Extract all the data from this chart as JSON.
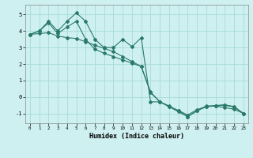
{
  "xlabel": "Humidex (Indice chaleur)",
  "bg_color": "#cff0f0",
  "grid_color": "#aadddd",
  "line_color": "#2a7a6a",
  "xlim": [
    -0.5,
    23.5
  ],
  "ylim": [
    -1.6,
    5.6
  ],
  "yticks": [
    -1,
    0,
    1,
    2,
    3,
    4,
    5
  ],
  "xticks": [
    0,
    1,
    2,
    3,
    4,
    5,
    6,
    7,
    8,
    9,
    10,
    11,
    12,
    13,
    14,
    15,
    16,
    17,
    18,
    19,
    20,
    21,
    22,
    23
  ],
  "s1_x": [
    0,
    1,
    2,
    3,
    4,
    5,
    6,
    7,
    8,
    9,
    10,
    11,
    12,
    13,
    14,
    15,
    16,
    17,
    18,
    19,
    20,
    21,
    22,
    23
  ],
  "s1_y": [
    3.8,
    4.0,
    4.6,
    4.0,
    4.6,
    5.1,
    4.6,
    3.5,
    3.0,
    3.0,
    3.5,
    3.05,
    3.6,
    -0.3,
    -0.3,
    -0.55,
    -0.85,
    -1.2,
    -0.85,
    -0.55,
    -0.55,
    -0.65,
    -0.75,
    -1.0
  ],
  "s2_x": [
    0,
    1,
    2,
    3,
    4,
    5,
    6,
    7,
    8,
    9,
    10,
    11,
    12,
    13,
    14,
    15,
    16,
    17,
    18,
    19,
    20,
    21,
    22,
    23
  ],
  "s2_y": [
    3.8,
    4.0,
    4.5,
    3.85,
    4.25,
    4.6,
    3.5,
    2.9,
    2.65,
    2.45,
    2.25,
    2.05,
    1.85,
    0.3,
    -0.3,
    -0.6,
    -0.9,
    -1.2,
    -0.85,
    -0.6,
    -0.55,
    -0.5,
    -0.62,
    -1.0
  ],
  "s3_x": [
    0,
    1,
    2,
    3,
    4,
    5,
    6,
    7,
    8,
    9,
    10,
    11,
    12,
    13,
    14,
    15,
    16,
    17,
    18,
    19,
    20,
    21,
    22,
    23
  ],
  "s3_y": [
    3.8,
    3.85,
    3.9,
    3.7,
    3.6,
    3.55,
    3.35,
    3.15,
    2.95,
    2.75,
    2.45,
    2.15,
    1.85,
    0.25,
    -0.28,
    -0.58,
    -0.82,
    -1.1,
    -0.78,
    -0.58,
    -0.52,
    -0.48,
    -0.58,
    -1.0
  ]
}
